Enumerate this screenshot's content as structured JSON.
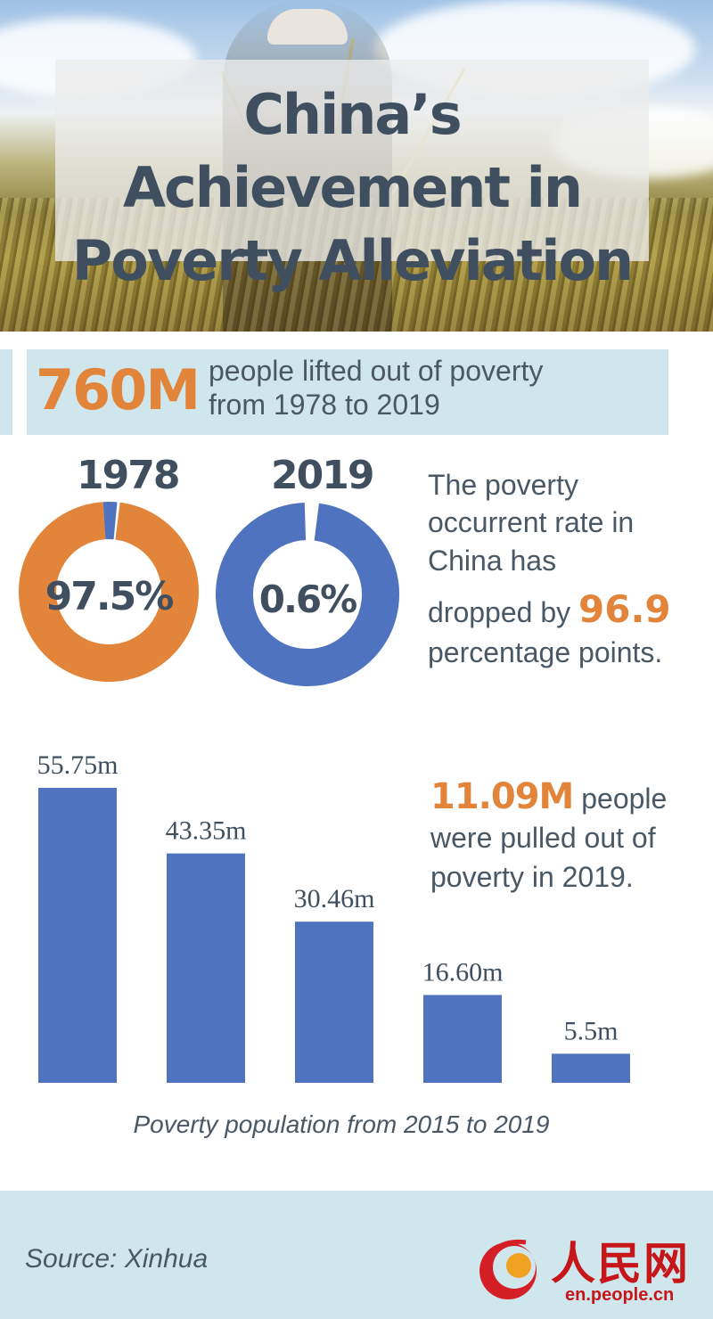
{
  "title": "China’s Achievement in Poverty Alleviation",
  "banner": {
    "number": "760M",
    "line1": "people lifted out of poverty",
    "line2": "from 1978 to 2019"
  },
  "donuts": [
    {
      "year": "1978",
      "label": "97.5%",
      "value": 97.5
    },
    {
      "year": "2019",
      "label": "0.6%",
      "value": 0.6
    }
  ],
  "rate_text": {
    "line1": "The poverty",
    "line2": "occurrent rate in",
    "line3": "China has",
    "line4_prefix": "dropped by",
    "highlight": "96.9",
    "line5": "percentage points."
  },
  "bar_note": {
    "highlight": "11.09M",
    "line1_rest": "people",
    "line2": "were pulled out of",
    "line3": "poverty in 2019."
  },
  "chart_data": {
    "type": "bar",
    "title": "Poverty population from 2015 to 2019",
    "categories": [],
    "values": [
      55.75,
      43.35,
      30.46,
      16.6,
      5.5
    ],
    "labels": [
      "55.75m",
      "43.35m",
      "30.46m",
      "16.60m",
      "5.5m"
    ],
    "ylim": [
      0,
      55.75
    ],
    "grid": false
  },
  "colors": {
    "bar": "#4f73bf",
    "orange": "#e2843a",
    "donut_remainder": "#ffffff",
    "panel": "#cfe7ec"
  },
  "footer": {
    "source": "Source: Xinhua",
    "logo_text": "人民网",
    "logo_url": "en.people.cn"
  }
}
